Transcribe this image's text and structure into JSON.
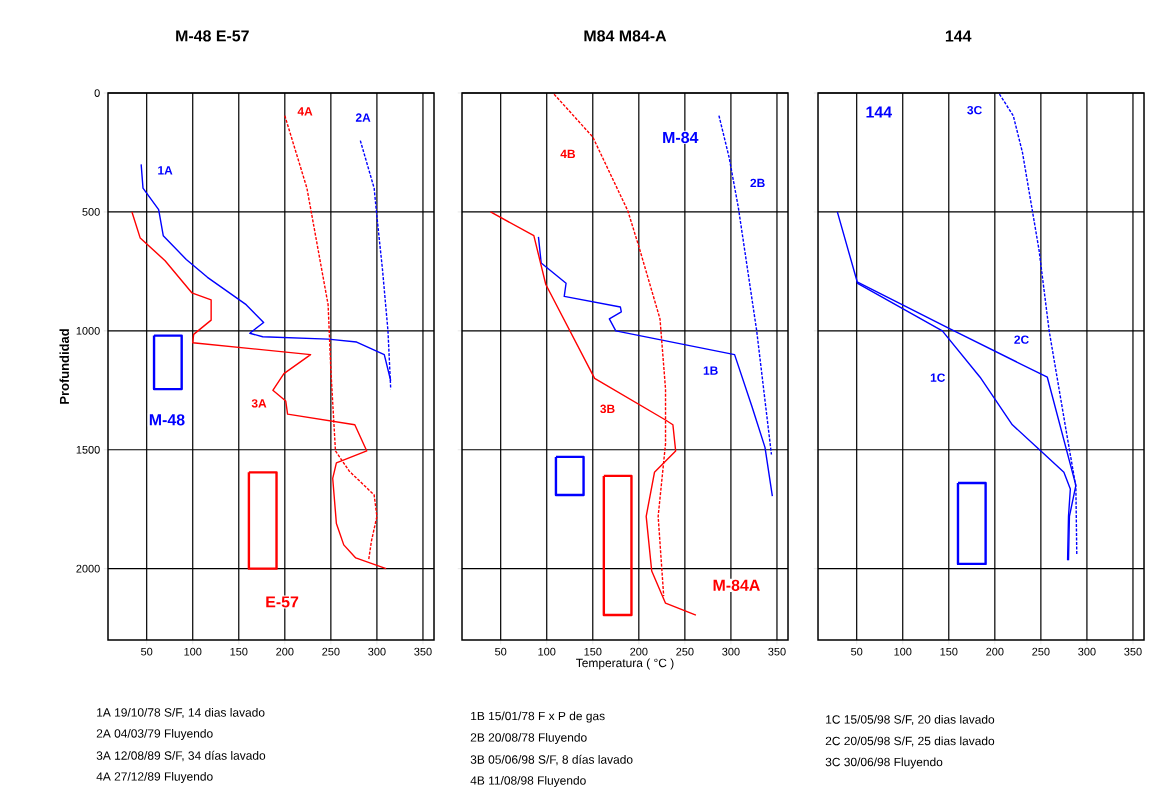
{
  "chart_data": [
    {
      "type": "line",
      "title": "M-48    E-57",
      "ylabel": "Profundidad",
      "xlim": [
        8,
        362
      ],
      "ylim": [
        2300,
        0
      ],
      "xticks": [
        50,
        100,
        150,
        200,
        250,
        300,
        350
      ],
      "yticks": [
        0,
        500,
        1000,
        1500,
        2000
      ],
      "grid": true,
      "annotations": [
        "1A  19/10/78   S/F, 14 dias lavado",
        "2A  04/03/79   Fluyendo",
        "3A  12/08/89   S/F, 34 días lavado",
        "4A  27/12/89   Fluyendo"
      ],
      "series": [
        {
          "name": "1A",
          "color": "#0000ff",
          "line_style": "solid",
          "x": [
            44,
            46,
            63,
            68,
            93,
            116,
            158,
            177,
            162,
            176,
            247,
            278,
            308,
            315
          ],
          "values": [
            300,
            400,
            490,
            600,
            700,
            775,
            890,
            965,
            1010,
            1025,
            1035,
            1047,
            1100,
            1210
          ]
        },
        {
          "name": "2A",
          "color": "#0000ff",
          "line_style": "dashed",
          "x": [
            282,
            297,
            300,
            306,
            312,
            315
          ],
          "values": [
            200,
            400,
            520,
            740,
            1000,
            1245
          ]
        },
        {
          "name": "3A",
          "color": "#ff0000",
          "line_style": "solid",
          "x": [
            34,
            43,
            70,
            99,
            120,
            120,
            101,
            100,
            228,
            199,
            187,
            201,
            203,
            276,
            289,
            256,
            252,
            256,
            264,
            277,
            310
          ],
          "values": [
            500,
            610,
            705,
            840,
            870,
            955,
            1015,
            1050,
            1100,
            1180,
            1250,
            1295,
            1350,
            1395,
            1505,
            1555,
            1620,
            1810,
            1900,
            1955,
            2000
          ]
        },
        {
          "name": "4A",
          "color": "#ff0000",
          "line_style": "dashed",
          "x": [
            200,
            224,
            247,
            250,
            255,
            270,
            297,
            300,
            294,
            291
          ],
          "values": [
            95,
            400,
            890,
            1165,
            1505,
            1590,
            1690,
            1780,
            1885,
            1965
          ]
        },
        {
          "type": "bar",
          "name": "M-48",
          "color": "#0000ff",
          "x": [
            73
          ],
          "base": [
            1020
          ],
          "values": [
            225
          ]
        },
        {
          "type": "bar",
          "name": "E-57",
          "color": "#ff0000",
          "x": [
            176
          ],
          "base": [
            1595
          ],
          "values": [
            405
          ]
        }
      ]
    },
    {
      "type": "line",
      "title": "M84            M84-A",
      "xlabel": "Temperatura ( °C )",
      "xlim": [
        8,
        362
      ],
      "ylim": [
        2300,
        0
      ],
      "xticks": [
        50,
        100,
        150,
        200,
        250,
        300,
        350
      ],
      "yticks": [
        0,
        500,
        1000,
        1500,
        2000
      ],
      "grid": true,
      "tick_labels": "x",
      "annotations": [
        "1B  15/01/78   F x P de gas",
        "2B  20/08/78   Fluyendo",
        "3B  05/06/98   S/F, 8 días lavado",
        "4B  11/08/98   Fluyendo",
        "M-84",
        "M-84A"
      ],
      "series": [
        {
          "name": "1B",
          "color": "#0000ff",
          "line_style": "solid",
          "x": [
            91,
            94,
            121,
            119,
            180,
            181,
            168,
            175,
            304,
            323,
            337,
            345
          ],
          "values": [
            605,
            715,
            800,
            855,
            900,
            920,
            950,
            1000,
            1100,
            1320,
            1490,
            1695
          ]
        },
        {
          "name": "2B",
          "color": "#0000ff",
          "line_style": "dashed",
          "x": [
            287,
            298,
            308,
            328,
            344
          ],
          "values": [
            95,
            270,
            480,
            1000,
            1520
          ]
        },
        {
          "name": "3B",
          "color": "#ff0000",
          "line_style": "solid",
          "x": [
            39,
            86,
            99,
            152,
            229,
            237,
            240,
            217,
            208,
            214,
            229,
            262
          ],
          "values": [
            500,
            600,
            805,
            1200,
            1375,
            1395,
            1505,
            1595,
            1780,
            2010,
            2145,
            2195
          ]
        },
        {
          "name": "4B",
          "color": "#ff0000",
          "line_style": "dashed",
          "x": [
            108,
            150,
            188,
            200,
            223,
            229,
            229,
            221,
            227
          ],
          "values": [
            5,
            185,
            495,
            645,
            950,
            1245,
            1475,
            1780,
            2115
          ]
        },
        {
          "type": "bar",
          "color": "#0000ff",
          "x": [
            125
          ],
          "base": [
            1530
          ],
          "values": [
            160
          ]
        },
        {
          "type": "bar",
          "color": "#ff0000",
          "x": [
            177
          ],
          "base": [
            1610
          ],
          "values": [
            585
          ]
        }
      ]
    },
    {
      "type": "line",
      "title": "144",
      "xlim": [
        8,
        362
      ],
      "ylim": [
        2300,
        0
      ],
      "xticks": [
        50,
        100,
        150,
        200,
        250,
        300,
        350
      ],
      "yticks": [
        0,
        500,
        1000,
        1500,
        2000
      ],
      "grid": true,
      "tick_labels": "x",
      "annotations": [
        "1C  15/05/98   S/F,  20 dias lavado",
        "2C  20/05/98   S/F,  25 dias lavado",
        "3C  30/06/98   Fluyendo",
        "144"
      ],
      "series": [
        {
          "name": "1C",
          "color": "#0000ff",
          "line_style": "solid",
          "x": [
            29,
            51,
            143,
            184,
            219,
            250,
            275,
            282,
            280,
            279
          ],
          "values": [
            500,
            800,
            1000,
            1195,
            1395,
            1505,
            1595,
            1665,
            1780,
            1965
          ]
        },
        {
          "name": "2C",
          "color": "#0000ff",
          "line_style": "solid",
          "x": [
            51,
            153,
            257,
            288,
            281,
            280
          ],
          "values": [
            795,
            995,
            1195,
            1650,
            1780,
            1965
          ]
        },
        {
          "name": "3C",
          "color": "#0000ff",
          "line_style": "dashed",
          "x": [
            205,
            220,
            230,
            248,
            259,
            277,
            288,
            289
          ],
          "values": [
            5,
            95,
            250,
            660,
            1000,
            1410,
            1655,
            1940
          ]
        },
        {
          "type": "bar",
          "color": "#0000ff",
          "x": [
            175
          ],
          "base": [
            1640
          ],
          "values": [
            340
          ]
        }
      ]
    }
  ]
}
